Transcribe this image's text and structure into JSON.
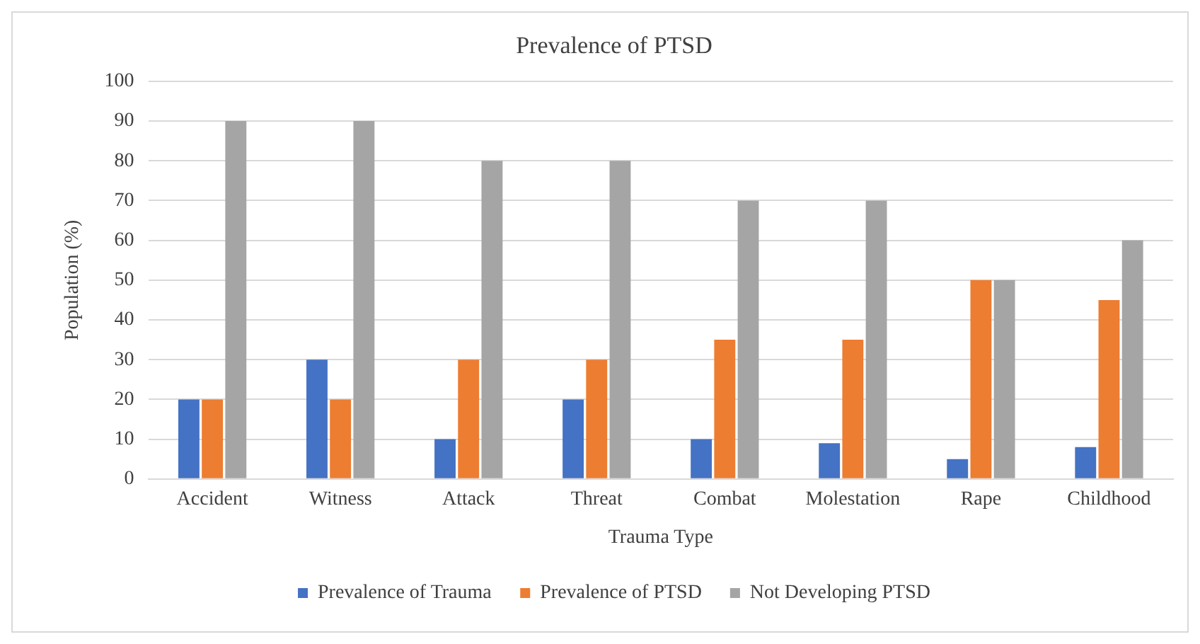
{
  "chart_data": {
    "type": "bar",
    "title": "Prevalence of PTSD",
    "xlabel": "Trauma Type",
    "ylabel": "Population (%)",
    "categories": [
      "Accident",
      "Witness",
      "Attack",
      "Threat",
      "Combat",
      "Molestation",
      "Rape",
      "Childhood"
    ],
    "series": [
      {
        "name": "Prevalence of Trauma",
        "color": "#4472c4",
        "values": [
          20,
          30,
          10,
          20,
          10,
          9,
          5,
          8
        ]
      },
      {
        "name": "Prevalence of PTSD",
        "color": "#ed7d31",
        "values": [
          20,
          20,
          30,
          30,
          35,
          35,
          50,
          45
        ]
      },
      {
        "name": "Not Developing PTSD",
        "color": "#a5a5a5",
        "values": [
          90,
          90,
          80,
          80,
          70,
          70,
          50,
          60
        ]
      }
    ],
    "ylim": [
      0,
      100
    ],
    "yticks": [
      0,
      10,
      20,
      30,
      40,
      50,
      60,
      70,
      80,
      90,
      100
    ],
    "grid": "y",
    "legend": "bottom"
  }
}
